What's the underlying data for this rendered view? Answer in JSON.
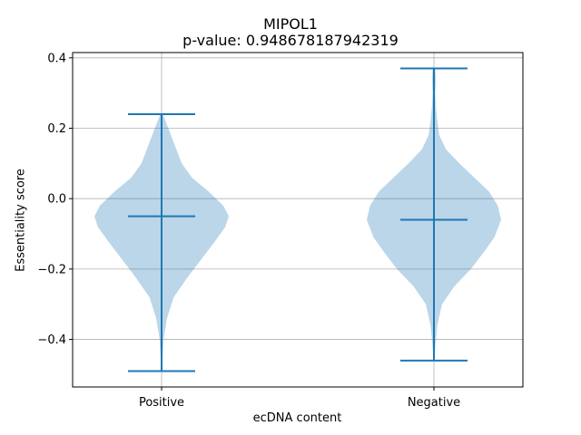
{
  "chart_data": {
    "type": "violin",
    "title": "MIPOL1",
    "subtitle": "p-value: 0.948678187942319",
    "xlabel": "ecDNA content",
    "ylabel": "Essentiality score",
    "ylim": [
      -0.535,
      0.415
    ],
    "yticks": [
      -0.4,
      -0.2,
      0.0,
      0.2,
      0.4
    ],
    "ytick_labels": [
      "−0.4",
      "−0.2",
      "0.0",
      "0.2",
      "0.4"
    ],
    "grid": true,
    "categories": [
      "Positive",
      "Negative"
    ],
    "violins": [
      {
        "category": "Positive",
        "min": -0.49,
        "max": 0.24,
        "median": -0.05,
        "density_y": [
          -0.49,
          -0.46,
          -0.4,
          -0.34,
          -0.28,
          -0.22,
          -0.17,
          -0.12,
          -0.08,
          -0.05,
          -0.02,
          0.02,
          0.06,
          0.1,
          0.14,
          0.18,
          0.21,
          0.24
        ],
        "density_halfwidth": [
          0.005,
          0.01,
          0.03,
          0.08,
          0.18,
          0.4,
          0.6,
          0.8,
          0.95,
          1.0,
          0.92,
          0.7,
          0.45,
          0.3,
          0.22,
          0.14,
          0.08,
          0.02
        ]
      },
      {
        "category": "Negative",
        "min": -0.46,
        "max": 0.37,
        "median": -0.06,
        "density_y": [
          -0.46,
          -0.42,
          -0.36,
          -0.3,
          -0.25,
          -0.2,
          -0.15,
          -0.11,
          -0.06,
          -0.02,
          0.02,
          0.06,
          0.1,
          0.14,
          0.18,
          0.22,
          0.26,
          0.3,
          0.34,
          0.37
        ],
        "density_halfwidth": [
          0.01,
          0.02,
          0.05,
          0.12,
          0.3,
          0.55,
          0.75,
          0.9,
          1.0,
          0.95,
          0.82,
          0.6,
          0.38,
          0.18,
          0.08,
          0.05,
          0.03,
          0.02,
          0.03,
          0.02
        ]
      }
    ],
    "colors": {
      "body": "#1f77b4",
      "lines": "#1f77b4",
      "grid": "#b0b0b0"
    }
  }
}
